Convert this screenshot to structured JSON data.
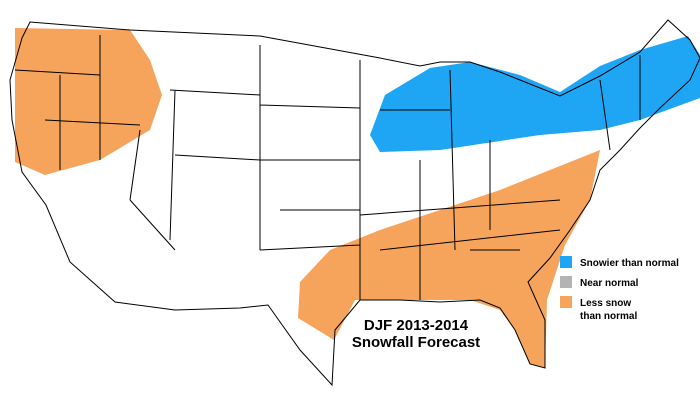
{
  "title": {
    "lines": [
      "DJF 2013-2014",
      "Snowfall Forecast"
    ]
  },
  "legend": {
    "items": [
      {
        "lines": [
          "Snowier than normal"
        ],
        "color": "#1ea5f4"
      },
      {
        "lines": [
          "Near normal"
        ],
        "color": "#b3b3b3"
      },
      {
        "lines": [
          "Less snow",
          "than normal"
        ],
        "color": "#f6a45c"
      }
    ]
  },
  "regions": [
    {
      "legend_item": 2,
      "name": "pacific-northwest"
    },
    {
      "legend_item": 0,
      "name": "great-lakes-northeast"
    },
    {
      "legend_item": 2,
      "name": "southeast-gulf"
    }
  ]
}
